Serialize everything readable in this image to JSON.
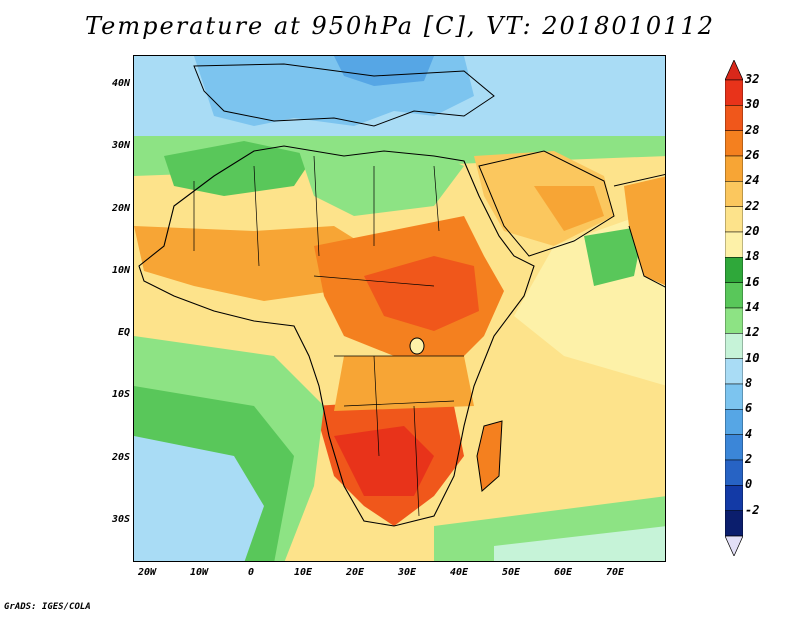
{
  "title": "Temperature at 950hPa [C], VT: 2018010112",
  "credit": "GrADS: IGES/COLA",
  "map": {
    "lat_labels": [
      "40N",
      "30N",
      "20N",
      "10N",
      "EQ",
      "10S",
      "20S",
      "30S"
    ],
    "lon_labels": [
      "20W",
      "10W",
      "0",
      "10E",
      "20E",
      "30E",
      "40E",
      "50E",
      "60E",
      "70E"
    ]
  },
  "colorbar": {
    "labels": [
      "32",
      "30",
      "28",
      "26",
      "24",
      "22",
      "20",
      "18",
      "16",
      "14",
      "12",
      "10",
      "8",
      "6",
      "4",
      "2",
      "0",
      "-2"
    ],
    "colors": [
      "#e8331a",
      "#f0571b",
      "#f4801f",
      "#f7a535",
      "#fbc75e",
      "#fde38b",
      "#fdf1a8",
      "#2fa83a",
      "#59c75a",
      "#8de384",
      "#c6f3d8",
      "#a9dcf5",
      "#7cc4ef",
      "#56a6e5",
      "#3b86d8",
      "#2763c4",
      "#133aa6",
      "#0b1e6d"
    ],
    "top_arrow": "#d8281a",
    "bottom_arrow": "#e3e0f7"
  }
}
